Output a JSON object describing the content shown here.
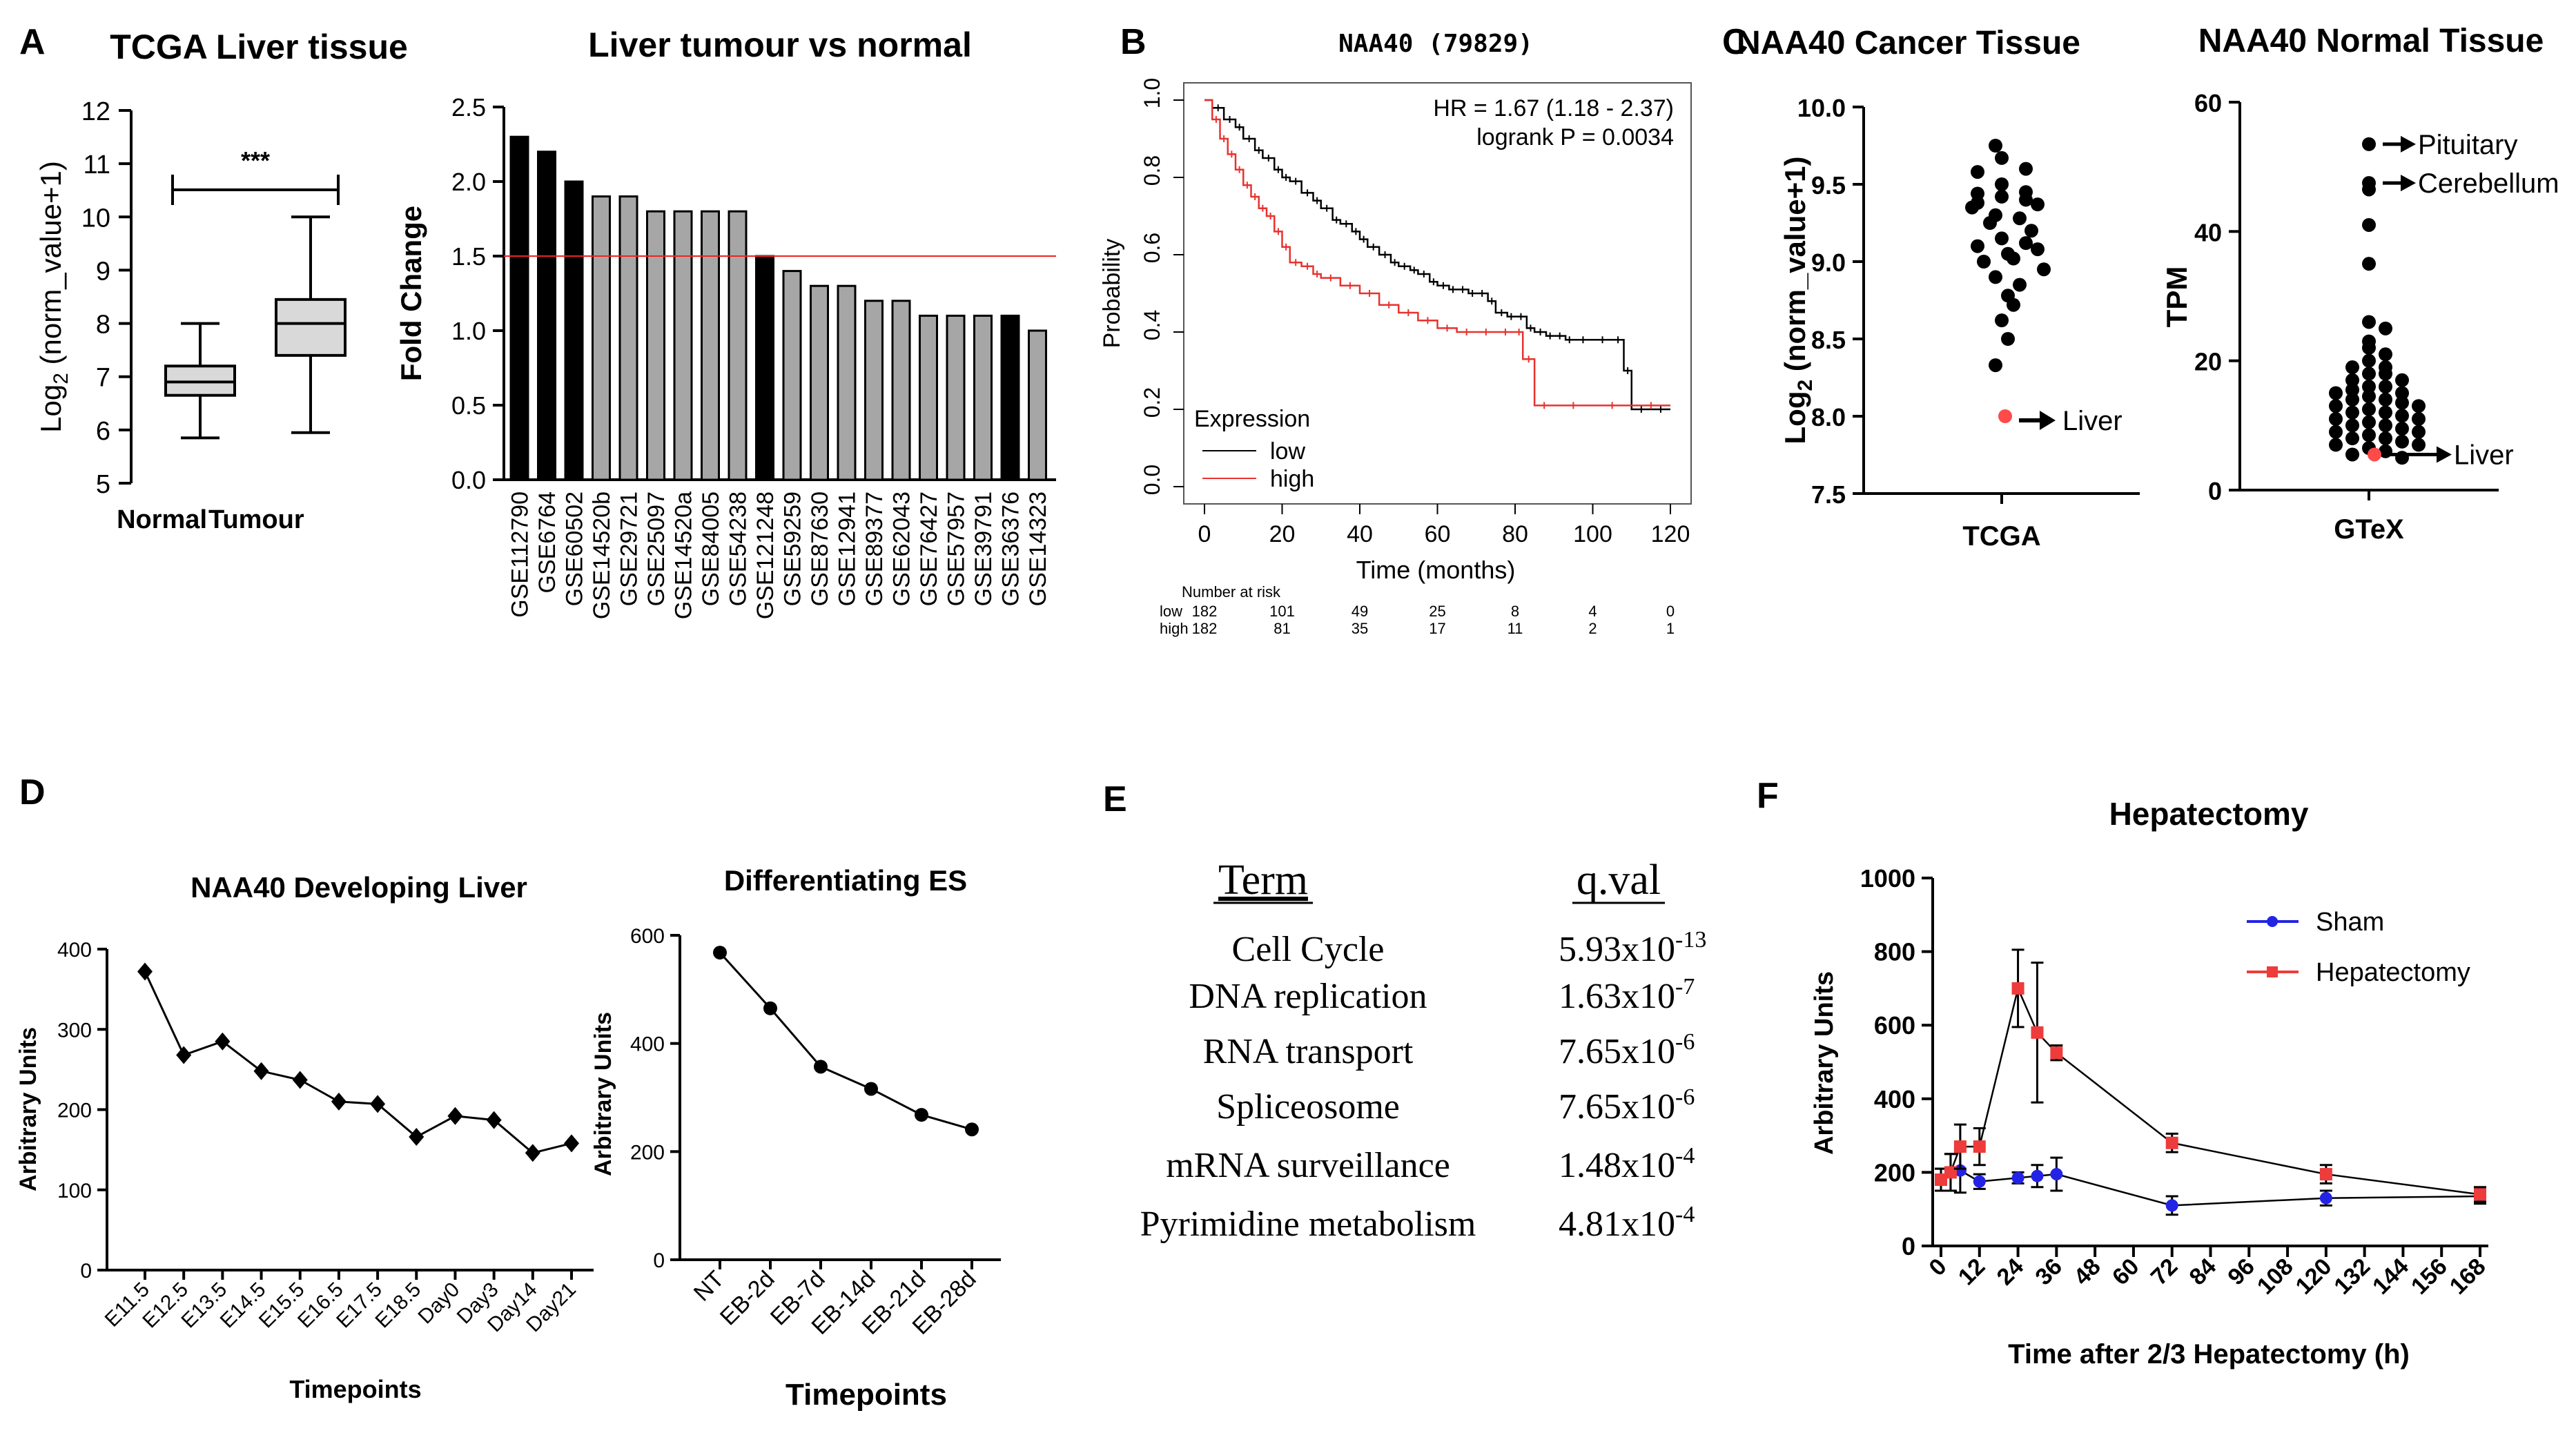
{
  "panel_labels": {
    "a": "A",
    "b": "B",
    "c": "C",
    "d": "D",
    "e": "E",
    "f": "F"
  },
  "chart_data": [
    {
      "id": "A1",
      "type": "box",
      "title": "TCGA Liver tissue",
      "ylabel_pre": "Log",
      "ylabel_sub": "2",
      "ylabel_post": " (norm_value+1)",
      "ylim": [
        5,
        12
      ],
      "yticks": [
        5,
        6,
        7,
        8,
        9,
        10,
        11,
        12
      ],
      "categories": [
        "Normal",
        "Tumour"
      ],
      "boxes": [
        {
          "name": "Normal",
          "min": 5.85,
          "q1": 6.65,
          "median": 6.9,
          "q3": 7.2,
          "max": 8.0
        },
        {
          "name": "Tumour",
          "min": 5.95,
          "q1": 7.4,
          "median": 8.0,
          "q3": 8.45,
          "max": 10.0
        }
      ],
      "significance": "***"
    },
    {
      "id": "A2",
      "type": "bar",
      "title": "Liver tumour vs normal",
      "ylabel": "Fold Change",
      "ylim": [
        0,
        2.5
      ],
      "yticks": [
        "0.0",
        "0.5",
        "1.0",
        "1.5",
        "2.0",
        "2.5"
      ],
      "threshold": 1.5,
      "categories": [
        "GSE112790",
        "GSE6764",
        "GSE60502",
        "GSE14520b",
        "GSE29721",
        "GSE25097",
        "GSE14520a",
        "GSE84005",
        "GSE54238",
        "GSE121248",
        "GSE59259",
        "GSE87630",
        "GSE12941",
        "GSE89377",
        "GSE62043",
        "GSE76427",
        "GSE57957",
        "GSE39791",
        "GSE36376",
        "GSE14323"
      ],
      "values": [
        2.3,
        2.2,
        2.0,
        1.9,
        1.9,
        1.8,
        1.8,
        1.8,
        1.8,
        1.5,
        1.4,
        1.3,
        1.3,
        1.2,
        1.2,
        1.1,
        1.1,
        1.1,
        1.1,
        1.0
      ],
      "colors": [
        "black",
        "black",
        "black",
        "gray",
        "gray",
        "gray",
        "gray",
        "gray",
        "gray",
        "black",
        "gray",
        "gray",
        "gray",
        "gray",
        "gray",
        "gray",
        "gray",
        "gray",
        "black",
        "gray"
      ]
    },
    {
      "id": "B",
      "type": "line",
      "title": "NAA40 (79829)",
      "xlabel": "Time (months)",
      "ylabel": "Probability",
      "xlim": [
        0,
        120
      ],
      "ylim": [
        0,
        1
      ],
      "xticks": [
        "0",
        "20",
        "40",
        "60",
        "80",
        "100",
        "120"
      ],
      "yticks": [
        "0.0",
        "0.2",
        "0.4",
        "0.6",
        "0.8",
        "1.0"
      ],
      "stats_hr": "HR = 1.67 (1.18 - 2.37)",
      "stats_p": "logrank P = 0.0034",
      "legend_title": "Expression",
      "series": [
        {
          "name": "low",
          "color": "#000000",
          "x": [
            0,
            2,
            5,
            8,
            10,
            13,
            15,
            18,
            20,
            22,
            25,
            28,
            30,
            33,
            35,
            38,
            40,
            42,
            45,
            48,
            50,
            53,
            55,
            58,
            60,
            63,
            65,
            68,
            70,
            73,
            75,
            78,
            80,
            83,
            85,
            88,
            90,
            93,
            95,
            100,
            105,
            108,
            110,
            115,
            120
          ],
          "y": [
            1.0,
            0.98,
            0.95,
            0.93,
            0.9,
            0.87,
            0.85,
            0.82,
            0.8,
            0.79,
            0.76,
            0.74,
            0.72,
            0.69,
            0.68,
            0.66,
            0.64,
            0.62,
            0.6,
            0.58,
            0.57,
            0.56,
            0.55,
            0.53,
            0.52,
            0.51,
            0.51,
            0.5,
            0.5,
            0.48,
            0.45,
            0.44,
            0.44,
            0.41,
            0.4,
            0.39,
            0.39,
            0.38,
            0.38,
            0.38,
            0.38,
            0.3,
            0.2,
            0.2,
            0.2
          ]
        },
        {
          "name": "high",
          "color": "#e8322f",
          "x": [
            0,
            2,
            4,
            6,
            8,
            10,
            12,
            14,
            16,
            18,
            20,
            22,
            25,
            28,
            30,
            35,
            40,
            45,
            50,
            55,
            60,
            65,
            70,
            75,
            80,
            82,
            85,
            90,
            100,
            110,
            120
          ],
          "y": [
            1.0,
            0.95,
            0.9,
            0.86,
            0.82,
            0.78,
            0.75,
            0.72,
            0.7,
            0.66,
            0.62,
            0.58,
            0.57,
            0.55,
            0.54,
            0.52,
            0.5,
            0.47,
            0.45,
            0.43,
            0.41,
            0.4,
            0.4,
            0.4,
            0.4,
            0.33,
            0.21,
            0.21,
            0.21,
            0.21,
            0.21
          ]
        }
      ],
      "risk_table": {
        "header": "Number at risk",
        "rows": [
          {
            "label": "low",
            "values": [
              "182",
              "101",
              "49",
              "25",
              "8",
              "4",
              "0"
            ]
          },
          {
            "label": "high",
            "values": [
              "182",
              "81",
              "35",
              "17",
              "11",
              "2",
              "1"
            ]
          }
        ]
      }
    },
    {
      "id": "C1",
      "type": "scatter",
      "title": "NAA40 Cancer Tissue",
      "ylabel_pre": "Log",
      "ylabel_sub": "2",
      "ylabel_post": " (norm_value+1)",
      "ylim": [
        7.5,
        10.0
      ],
      "yticks": [
        "7.5",
        "8.0",
        "8.5",
        "9.0",
        "9.5",
        "10.0"
      ],
      "xlabel": "TCGA",
      "values": [
        9.75,
        9.67,
        9.6,
        9.58,
        9.5,
        9.45,
        9.44,
        9.42,
        9.4,
        9.38,
        9.37,
        9.35,
        9.3,
        9.28,
        9.25,
        9.2,
        9.15,
        9.12,
        9.1,
        9.08,
        9.05,
        9.02,
        9.0,
        8.95,
        8.9,
        8.85,
        8.78,
        8.72,
        8.62,
        8.5,
        8.33
      ],
      "highlight": {
        "value": 8.0,
        "label": "Liver"
      }
    },
    {
      "id": "C2",
      "type": "scatter",
      "title": "NAA40 Normal Tissue",
      "ylabel": "TPM",
      "ylim": [
        0,
        60
      ],
      "yticks": [
        "0",
        "20",
        "40",
        "60"
      ],
      "xlabel": "GTeX",
      "values": [
        53.5,
        47.5,
        46.5,
        41,
        35,
        26,
        25,
        23,
        22,
        21,
        20,
        19,
        19,
        18,
        18,
        17,
        17,
        16,
        16,
        15.5,
        15,
        15,
        14.5,
        14,
        14,
        13.5,
        13,
        13,
        12.5,
        12,
        12,
        11.5,
        11,
        11,
        10.5,
        10,
        10,
        9.5,
        9,
        9,
        8.5,
        8,
        8,
        7.5,
        7,
        7,
        6.5,
        6,
        5.5,
        5
      ],
      "highlight": {
        "value": 5.5,
        "label": "Liver"
      },
      "annotations": [
        {
          "label": "Pituitary",
          "value": 53.5
        },
        {
          "label": "Cerebellum",
          "value": 47.5
        }
      ]
    },
    {
      "id": "D1",
      "type": "line",
      "title": "NAA40 Developing Liver",
      "xlabel": "Timepoints",
      "ylabel": "Arbitrary Units",
      "ylim": [
        0,
        400
      ],
      "yticks": [
        "0",
        "100",
        "200",
        "300",
        "400"
      ],
      "categories": [
        "E11.5",
        "E12.5",
        "E13.5",
        "E14.5",
        "E15.5",
        "E16.5",
        "E17.5",
        "E18.5",
        "Day0",
        "Day3",
        "Day14",
        "Day21"
      ],
      "values": [
        372,
        268,
        285,
        248,
        237,
        210,
        207,
        166,
        192,
        187,
        146,
        158
      ]
    },
    {
      "id": "D2",
      "type": "line",
      "title": "Differentiating ES",
      "xlabel": "Timepoints",
      "ylabel": "Arbitrary Units",
      "ylim": [
        0,
        600
      ],
      "yticks": [
        "0",
        "200",
        "400",
        "600"
      ],
      "categories": [
        "NT",
        "EB-2d",
        "EB-7d",
        "EB-14d",
        "EB-21d",
        "EB-28d"
      ],
      "values": [
        568,
        465,
        357,
        316,
        268,
        241
      ]
    },
    {
      "id": "E",
      "type": "table",
      "header_term": "Term",
      "header_q": "q.val",
      "rows": [
        {
          "term": "Cell Cycle",
          "q_base": "5.93x10",
          "q_exp": "-13"
        },
        {
          "term": "DNA replication",
          "q_base": "1.63x10",
          "q_exp": "-7"
        },
        {
          "term": "RNA transport",
          "q_base": "7.65x10",
          "q_exp": "-6"
        },
        {
          "term": "Spliceosome",
          "q_base": "7.65x10",
          "q_exp": "-6"
        },
        {
          "term": "mRNA surveillance",
          "q_base": "1.48x10",
          "q_exp": "-4"
        },
        {
          "term": "Pyrimidine metabolism",
          "q_base": "4.81x10",
          "q_exp": "-4"
        }
      ]
    },
    {
      "id": "F",
      "type": "line",
      "title": "Hepatectomy",
      "xlabel": "Time after 2/3 Hepatectomy (h)",
      "ylabel": "Arbitrary Units",
      "xlim": [
        0,
        168
      ],
      "ylim": [
        0,
        1000
      ],
      "xticks": [
        "0",
        "12",
        "24",
        "36",
        "48",
        "60",
        "72",
        "84",
        "96",
        "108",
        "120",
        "132",
        "144",
        "156",
        "168"
      ],
      "yticks": [
        "0",
        "200",
        "400",
        "600",
        "800",
        "1000"
      ],
      "series": [
        {
          "name": "Sham",
          "color": "#2323e6",
          "x": [
            0,
            3,
            6,
            12,
            24,
            30,
            36,
            72,
            120,
            168
          ],
          "y": [
            180,
            200,
            205,
            175,
            185,
            190,
            195,
            110,
            130,
            135
          ],
          "err": [
            30,
            50,
            60,
            20,
            15,
            30,
            45,
            25,
            20,
            20
          ]
        },
        {
          "name": "Hepatectomy",
          "color": "#ee3b3b",
          "x": [
            0,
            3,
            6,
            12,
            24,
            30,
            36,
            72,
            120,
            168
          ],
          "y": [
            180,
            200,
            270,
            270,
            700,
            580,
            525,
            280,
            195,
            140
          ],
          "err": [
            30,
            50,
            60,
            50,
            105,
            190,
            20,
            25,
            25,
            20
          ]
        }
      ]
    }
  ]
}
